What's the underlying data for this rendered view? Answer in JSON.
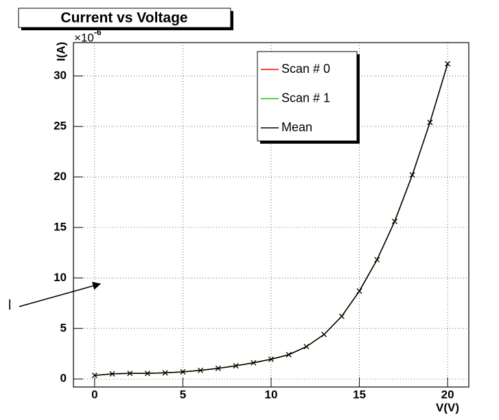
{
  "chart_data": {
    "type": "line",
    "title": "Current vs Voltage",
    "x_label": "V(V)",
    "y_label": "I(A)",
    "y_multiplier": "×10",
    "y_multiplier_exponent": "-6",
    "annotation": "l",
    "x": [
      0,
      1,
      2,
      3,
      4,
      5,
      6,
      7,
      8,
      9,
      10,
      11,
      12,
      13,
      14,
      15,
      16,
      17,
      18,
      19,
      20
    ],
    "series": [
      {
        "name": "Scan # 0",
        "color": "#ff0000",
        "values": [
          0.35,
          0.5,
          0.55,
          0.55,
          0.6,
          0.7,
          0.85,
          1.05,
          1.3,
          1.6,
          1.95,
          2.4,
          3.2,
          4.4,
          6.2,
          8.7,
          11.8,
          15.6,
          20.2,
          25.4,
          31.2
        ]
      },
      {
        "name": "Scan # 1",
        "color": "#00cc00",
        "values": [
          0.35,
          0.5,
          0.55,
          0.55,
          0.6,
          0.7,
          0.85,
          1.05,
          1.3,
          1.6,
          1.95,
          2.4,
          3.2,
          4.4,
          6.2,
          8.7,
          11.8,
          15.6,
          20.2,
          25.4,
          31.2
        ]
      },
      {
        "name": "Mean",
        "color": "#000000",
        "values": [
          0.35,
          0.5,
          0.55,
          0.55,
          0.6,
          0.7,
          0.85,
          1.05,
          1.3,
          1.6,
          1.95,
          2.4,
          3.2,
          4.4,
          6.2,
          8.7,
          11.8,
          15.6,
          20.2,
          25.4,
          31.2
        ]
      }
    ],
    "xlim": [
      -1.2,
      21.2
    ],
    "xticks": [
      0,
      5,
      10,
      15,
      20
    ],
    "ylim": [
      -0.8,
      33.3
    ],
    "yticks": [
      0,
      5,
      10,
      15,
      20,
      25,
      30
    ],
    "grid": true,
    "legend": "top-right"
  }
}
